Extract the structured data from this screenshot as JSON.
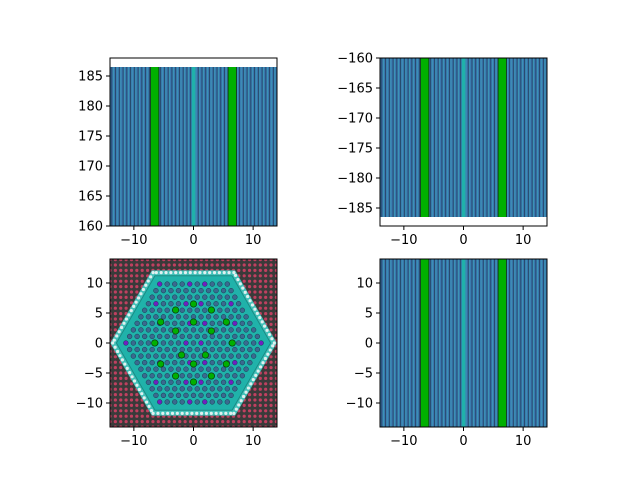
{
  "chart_data": [
    {
      "type": "slice",
      "panel": "top-left",
      "xlim": [
        -14,
        14
      ],
      "ylim": [
        160,
        188
      ],
      "xticks": [
        -10,
        0,
        10
      ],
      "yticks": [
        160,
        165,
        170,
        175,
        180,
        185
      ],
      "fill_top": 186.5,
      "fill_bottom": null,
      "green_x": [
        -6.5,
        6.5
      ],
      "cyan_x": [
        -0.3,
        0.3
      ],
      "colors": {
        "blue": "#3a77b0",
        "green": "#00b000",
        "cyan": "#20b2aa"
      }
    },
    {
      "type": "slice",
      "panel": "top-right",
      "xlim": [
        -14,
        14
      ],
      "ylim": [
        -188,
        -160
      ],
      "xticks": [
        -10,
        0,
        10
      ],
      "yticks": [
        -160,
        -165,
        -170,
        -175,
        -180,
        -185
      ],
      "fill_top": null,
      "fill_bottom": -186.5,
      "green_x": [
        -6.5,
        6.5
      ],
      "cyan_x": [
        -0.3,
        0.3
      ],
      "colors": {
        "blue": "#3a77b0",
        "green": "#00b000",
        "cyan": "#20b2aa"
      }
    },
    {
      "type": "lattice",
      "panel": "bottom-left",
      "xlim": [
        -14,
        14
      ],
      "ylim": [
        -14,
        14
      ],
      "xticks": [
        -10,
        0,
        10
      ],
      "yticks": [
        -10,
        -5,
        0,
        5,
        10
      ],
      "hex_apothem": 11.2,
      "pitch": 1.26,
      "green_points": [
        [
          0,
          6.5
        ],
        [
          3,
          5.5
        ],
        [
          -3,
          5.5
        ],
        [
          5.5,
          3.5
        ],
        [
          -5.5,
          3.5
        ],
        [
          6.5,
          0
        ],
        [
          -6.5,
          0
        ],
        [
          5.5,
          -3.5
        ],
        [
          -5.5,
          -3.5
        ],
        [
          3,
          -5.5
        ],
        [
          -3,
          -5.5
        ],
        [
          0,
          -6.5
        ],
        [
          0,
          3.5
        ],
        [
          3,
          2
        ],
        [
          -3,
          2
        ],
        [
          2,
          -2
        ],
        [
          -2,
          -2
        ],
        [
          0,
          -3.5
        ]
      ],
      "colors": {
        "outer": "#3a3a3a",
        "outer_pin": "#c04060",
        "core": "#20b2aa",
        "pin": "#3a6a90",
        "green": "#00b000",
        "purple": "#7020c0",
        "white": "#e0f0f0"
      }
    },
    {
      "type": "slice",
      "panel": "bottom-right",
      "xlim": [
        -14,
        14
      ],
      "ylim": [
        -14,
        14
      ],
      "xticks": [
        -10,
        0,
        10
      ],
      "yticks": [
        -10,
        -5,
        0,
        5,
        10
      ],
      "fill_top": null,
      "fill_bottom": null,
      "green_x": [
        -6.5,
        6.5
      ],
      "cyan_x": [
        -0.3,
        0.3
      ],
      "colors": {
        "blue": "#3a77b0",
        "green": "#00b000",
        "cyan": "#20b2aa"
      }
    }
  ]
}
